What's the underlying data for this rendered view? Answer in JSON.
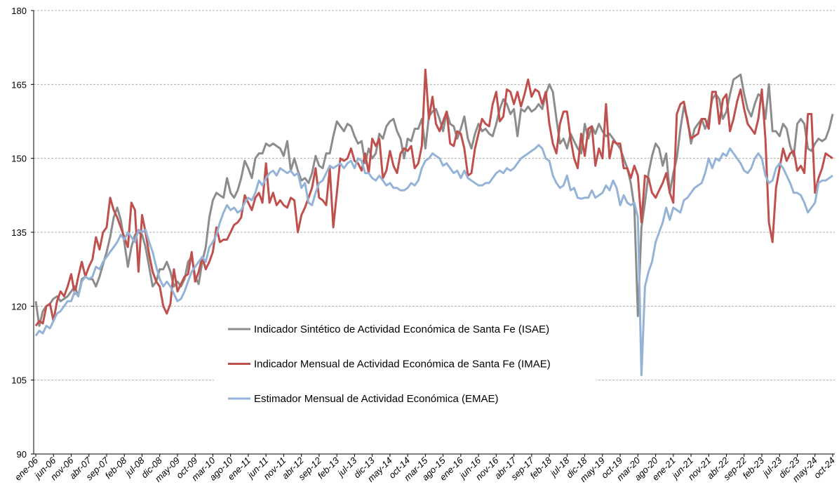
{
  "chart_data": {
    "type": "line",
    "categories": [
      "ene-06",
      null,
      null,
      null,
      null,
      "jun-06",
      null,
      null,
      null,
      null,
      "nov-06",
      null,
      null,
      null,
      null,
      "abr-07",
      null,
      null,
      null,
      null,
      "sep-07",
      null,
      null,
      null,
      null,
      "feb-08",
      null,
      null,
      null,
      null,
      "jul-08",
      null,
      null,
      null,
      null,
      "dic-08",
      null,
      null,
      null,
      null,
      "may-09",
      null,
      null,
      null,
      null,
      "oct-09",
      null,
      null,
      null,
      null,
      "mar-10",
      null,
      null,
      null,
      null,
      "ago-10",
      null,
      null,
      null,
      null,
      "ene-11",
      null,
      null,
      null,
      null,
      "jun-11",
      null,
      null,
      null,
      null,
      "nov-11",
      null,
      null,
      null,
      null,
      "abr-12",
      null,
      null,
      null,
      null,
      "sep-12",
      null,
      null,
      null,
      null,
      "feb-13",
      null,
      null,
      null,
      null,
      "jul-13",
      null,
      null,
      null,
      null,
      "dic-13",
      null,
      null,
      null,
      null,
      "may-14",
      null,
      null,
      null,
      null,
      "oct-14",
      null,
      null,
      null,
      null,
      "mar-15",
      null,
      null,
      null,
      null,
      "ago-15",
      null,
      null,
      null,
      null,
      "ene-16",
      null,
      null,
      null,
      null,
      "jun-16",
      null,
      null,
      null,
      null,
      "nov-16",
      null,
      null,
      null,
      null,
      "abr-17",
      null,
      null,
      null,
      null,
      "sep-17",
      null,
      null,
      null,
      null,
      "feb-18",
      null,
      null,
      null,
      null,
      "jul-18",
      null,
      null,
      null,
      null,
      "dic-18",
      null,
      null,
      null,
      null,
      "may-19",
      null,
      null,
      null,
      null,
      "oct-19",
      null,
      null,
      null,
      null,
      "mar-20",
      null,
      null,
      null,
      null,
      "ago-20",
      null,
      null,
      null,
      null,
      "ene-21",
      null,
      null,
      null,
      null,
      "jun-21",
      null,
      null,
      null,
      null,
      "nov-21",
      null,
      null,
      null,
      null,
      "abr-22",
      null,
      null,
      null,
      null,
      "sep-22",
      null,
      null,
      null,
      null,
      "feb-23",
      null,
      null,
      null,
      null,
      "jul-23",
      null,
      null,
      null,
      null,
      "dic-23",
      null,
      null,
      null,
      null,
      "may-24",
      null,
      null,
      null,
      null,
      "oct-24"
    ],
    "series": [
      {
        "name": "Indicador Sintético de Actividad Económica de Santa Fe (ISAE)",
        "color": "#8c8c8c",
        "values": [
          121,
          116,
          119,
          120,
          120.5,
          121.5,
          122,
          121,
          121.5,
          122,
          123,
          124,
          122,
          125.5,
          126,
          125.5,
          125.5,
          124,
          126,
          128.5,
          131,
          134,
          138,
          140,
          137.5,
          133,
          128,
          132,
          134.5,
          135,
          134.5,
          132,
          128,
          124,
          125,
          127.5,
          127.5,
          129,
          127,
          124,
          125,
          124,
          125.5,
          129,
          130,
          126,
          124.5,
          129,
          132,
          138,
          141.5,
          143,
          142.5,
          142,
          146,
          143,
          142,
          143.5,
          146,
          149.5,
          148,
          146,
          150,
          151,
          151,
          153,
          152.5,
          153,
          152.5,
          152,
          150.5,
          153.5,
          147.5,
          150,
          147.5,
          145.5,
          146,
          145,
          147,
          150.5,
          148.5,
          148,
          151,
          151,
          154.5,
          157.5,
          156.5,
          155.5,
          157,
          156.5,
          154.5,
          153,
          153.5,
          149,
          152,
          150,
          151,
          155,
          154,
          156.5,
          157.5,
          158,
          155.5,
          154,
          150,
          154,
          153.5,
          156,
          156,
          158,
          152,
          158.5,
          159.5,
          160,
          158,
          155.5,
          159.5,
          157,
          156.5,
          154,
          156,
          158.5,
          154,
          152,
          155,
          157,
          155.5,
          156,
          155,
          154.5,
          157,
          160,
          162,
          161,
          159,
          160,
          154.5,
          160,
          159.5,
          160.5,
          159.5,
          160,
          161,
          160,
          163,
          165,
          163.5,
          158,
          153,
          154,
          152,
          155,
          153.5,
          152,
          151,
          157,
          154,
          156.5,
          155,
          157,
          155.5,
          154.5,
          155,
          154,
          153,
          152,
          150,
          148,
          145,
          140,
          118,
          136,
          141,
          147,
          150.5,
          153,
          152,
          148.5,
          151,
          143,
          147,
          150,
          156,
          160.5,
          158,
          153,
          156,
          157,
          158,
          156,
          158,
          162,
          163,
          162,
          158,
          159.5,
          163,
          166,
          166.5,
          167,
          163,
          160,
          158.5,
          161,
          163,
          162.5,
          158,
          165,
          155.5,
          155.5,
          154.5,
          157,
          156,
          152.5,
          150.5,
          157,
          158,
          157,
          152,
          151.5,
          153,
          154,
          153.5,
          154,
          156,
          159
        ]
      },
      {
        "name": "Indicador Mensual de Actividad Económica de Santa Fe (IMAE)",
        "color": "#c0504d",
        "values": [
          116,
          117,
          116.5,
          120,
          120.5,
          117,
          121,
          123,
          122,
          124,
          126.5,
          122.5,
          126,
          129,
          126,
          128,
          129.5,
          134,
          131.5,
          135,
          136,
          142,
          139.5,
          138,
          136,
          134,
          132,
          141,
          139.5,
          127,
          138.5,
          135,
          130.5,
          127,
          125,
          124,
          120,
          118.5,
          120.5,
          127.5,
          123,
          124.5,
          126,
          126.5,
          131,
          125,
          127,
          130,
          127.5,
          129,
          131,
          136,
          133,
          133.5,
          133.5,
          135,
          136.5,
          137,
          138,
          142.5,
          141,
          139.5,
          142,
          143,
          141,
          149,
          141,
          143,
          140.5,
          141.5,
          140.5,
          140,
          142,
          141.5,
          135,
          138.5,
          140,
          142,
          144,
          148,
          142,
          141.5,
          140.5,
          148,
          136,
          143,
          150,
          149.5,
          150,
          152,
          149.5,
          149,
          147.5,
          151,
          147,
          154,
          152.5,
          154,
          146,
          147.5,
          151.5,
          148.5,
          147,
          151,
          152,
          151.5,
          152.5,
          148,
          149,
          152.5,
          168,
          158,
          162.5,
          157,
          155.5,
          157.5,
          159.5,
          153,
          152.5,
          155.5,
          155,
          152,
          146.5,
          147,
          152,
          155,
          158,
          157,
          156.5,
          161,
          163.5,
          157.5,
          158.5,
          164,
          163.5,
          161,
          163.5,
          160.5,
          163,
          166,
          162.5,
          164,
          163.5,
          161,
          163.5,
          157,
          153,
          151,
          157,
          159.5,
          159.5,
          154,
          150,
          148,
          155,
          150.5,
          156,
          156.5,
          148.5,
          152,
          150,
          161,
          150,
          153.5,
          153,
          153,
          148,
          148,
          146,
          148.5,
          146.5,
          137,
          146.5,
          146,
          143,
          142,
          143.5,
          145,
          147,
          143,
          141,
          159,
          161,
          161.5,
          157.5,
          154,
          154.5,
          155,
          158,
          158,
          156,
          163.5,
          163.5,
          157,
          162,
          163,
          155.5,
          158,
          161.5,
          164,
          160,
          157,
          156,
          155,
          158,
          164,
          154,
          137,
          133,
          144,
          148,
          152,
          149.5,
          151,
          151.5,
          147.5,
          148.5,
          147,
          159,
          159,
          143,
          146,
          148,
          151,
          150.5,
          150
        ]
      },
      {
        "name": "Estimador Mensual de Actividad Económica (EMAE)",
        "color": "#95b3d7",
        "values": [
          114,
          115,
          114.5,
          116,
          115.5,
          117,
          118.5,
          119,
          120,
          121,
          121,
          123,
          122,
          125,
          126,
          125.5,
          126,
          128,
          127.5,
          129,
          130,
          131,
          132,
          133,
          134.5,
          133.5,
          135,
          134,
          133,
          135.5,
          135,
          135.5,
          133,
          131,
          128,
          125.5,
          124,
          125,
          124,
          122.5,
          121,
          121.5,
          123,
          125,
          127,
          128,
          129,
          130,
          129,
          132,
          133,
          134.5,
          137,
          139,
          140.5,
          139.5,
          140,
          139,
          139.5,
          141,
          142,
          141.5,
          143,
          145.5,
          144.5,
          146,
          147,
          147.5,
          146.5,
          148,
          147.5,
          147,
          147.5,
          146.5,
          147,
          144,
          145,
          141,
          140.5,
          143,
          145,
          145.5,
          147,
          148.5,
          148,
          148.5,
          149,
          148,
          149,
          149.5,
          148,
          150,
          149.5,
          147,
          147,
          146,
          145.5,
          146.5,
          145.5,
          144.5,
          145,
          144,
          144,
          143.5,
          143.5,
          144,
          145,
          144.5,
          145.5,
          148,
          149.5,
          150,
          151,
          150.5,
          150,
          148.5,
          149,
          148,
          147,
          147.5,
          146,
          147.5,
          146,
          145.5,
          145,
          144.5,
          144.5,
          145,
          145,
          146,
          147,
          147.5,
          147,
          148,
          147.5,
          148,
          149,
          150,
          150.5,
          151,
          151.5,
          152,
          152.7,
          152,
          150,
          149.5,
          146.5,
          145,
          144,
          144.5,
          146.5,
          143.5,
          144,
          142,
          141.8,
          142,
          142,
          143.5,
          142,
          142.5,
          143,
          144.5,
          143.5,
          145.5,
          144,
          140.5,
          142.5,
          141,
          140.5,
          141,
          138,
          106,
          124,
          127,
          129,
          133,
          135,
          137,
          140,
          137.5,
          140,
          139.5,
          139,
          141.5,
          142,
          143,
          144,
          144.5,
          145,
          147,
          150,
          148,
          150,
          149.5,
          151,
          150.5,
          152,
          151,
          150,
          149,
          147.5,
          147,
          148,
          150,
          151,
          150,
          146.5,
          145,
          145.5,
          148,
          149,
          148,
          146.5,
          145,
          143,
          143,
          142.5,
          141,
          139,
          140,
          141,
          145,
          145.5,
          145.5,
          146,
          146.5
        ]
      }
    ],
    "ylim": [
      90,
      180
    ],
    "yticks": [
      90,
      105,
      120,
      135,
      150,
      165,
      180
    ],
    "grid": true
  }
}
